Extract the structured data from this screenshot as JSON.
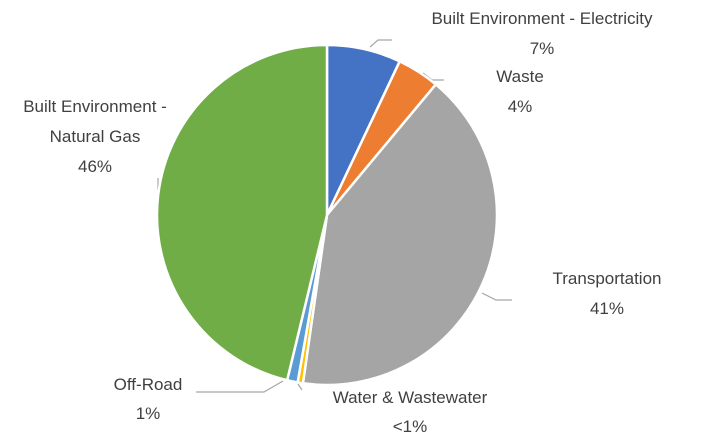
{
  "chart_data": {
    "type": "pie",
    "categories": [
      "Built Environment - Electricity",
      "Waste",
      "Transportation",
      "Water & Wastewater",
      "Off-Road",
      "Built Environment - Natural Gas"
    ],
    "values": [
      7,
      4,
      41,
      0.5,
      1,
      46
    ],
    "value_labels": [
      "7%",
      "4%",
      "41%",
      "<1%",
      "1%",
      "46%"
    ],
    "colors": [
      "#4472c4",
      "#ed7d31",
      "#a5a5a5",
      "#ffc000",
      "#5b9bd5",
      "#70ad47"
    ]
  }
}
